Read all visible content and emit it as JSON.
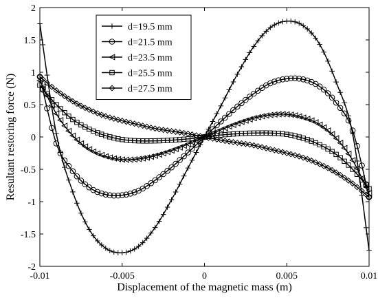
{
  "chart_data": {
    "type": "line",
    "title": "",
    "xlabel": "Displacement of the magnetic mass (m)",
    "ylabel": "Resultant restoring force (N)",
    "xlim": [
      -0.01,
      0.01
    ],
    "ylim": [
      -2,
      2
    ],
    "xticks": [
      -0.01,
      -0.005,
      0,
      0.005,
      0.01
    ],
    "xtick_labels": [
      "-0.01",
      "-0.005",
      "0",
      "0.005",
      "0.01"
    ],
    "yticks": [
      -2,
      -1.5,
      -1,
      -0.5,
      0,
      0.5,
      1,
      1.5,
      2
    ],
    "ytick_labels": [
      "-2",
      "-1.5",
      "-1",
      "-0.5",
      "0",
      "0.5",
      "1",
      "1.5",
      "2"
    ],
    "grid": false,
    "legend_position": "top-left",
    "series": [
      {
        "name": "d=19.5 mm",
        "marker": "plus",
        "x": [
          -0.01,
          -0.009,
          -0.008,
          -0.007,
          -0.006,
          -0.005,
          -0.004,
          -0.003,
          -0.002,
          -0.001,
          0,
          0.001,
          0.002,
          0.003,
          0.004,
          0.005,
          0.006,
          0.007,
          0.008,
          0.009,
          0.01
        ],
        "y": [
          1.75,
          0.05,
          -0.85,
          -1.43,
          -1.72,
          -1.79,
          -1.69,
          -1.4,
          -0.97,
          -0.48,
          0,
          0.48,
          0.97,
          1.4,
          1.69,
          1.79,
          1.72,
          1.43,
          0.85,
          0.05,
          -1.75
        ]
      },
      {
        "name": "d=21.5 mm",
        "marker": "circle",
        "x": [
          -0.01,
          -0.009,
          -0.008,
          -0.007,
          -0.006,
          -0.005,
          -0.004,
          -0.003,
          -0.002,
          -0.001,
          0,
          0.001,
          0.002,
          0.003,
          0.004,
          0.005,
          0.006,
          0.007,
          0.008,
          0.009,
          0.01
        ],
        "y": [
          0.93,
          -0.1,
          -0.53,
          -0.78,
          -0.89,
          -0.9,
          -0.83,
          -0.67,
          -0.47,
          -0.24,
          0,
          0.24,
          0.47,
          0.67,
          0.83,
          0.9,
          0.89,
          0.78,
          0.53,
          0.1,
          -0.93
        ]
      },
      {
        "name": "d=23.5 mm",
        "marker": "triangle-left",
        "x": [
          -0.01,
          -0.009,
          -0.008,
          -0.007,
          -0.006,
          -0.005,
          -0.004,
          -0.003,
          -0.002,
          -0.001,
          0,
          0.001,
          0.002,
          0.003,
          0.004,
          0.005,
          0.006,
          0.007,
          0.008,
          0.009,
          0.01
        ],
        "y": [
          0.87,
          0.36,
          0.02,
          -0.19,
          -0.3,
          -0.35,
          -0.34,
          -0.29,
          -0.21,
          -0.11,
          0,
          0.11,
          0.21,
          0.29,
          0.34,
          0.35,
          0.3,
          0.19,
          -0.02,
          -0.36,
          -0.87
        ]
      },
      {
        "name": "d=25.5 mm",
        "marker": "square",
        "x": [
          -0.01,
          -0.009,
          -0.008,
          -0.007,
          -0.006,
          -0.005,
          -0.004,
          -0.003,
          -0.002,
          -0.001,
          0,
          0.001,
          0.002,
          0.003,
          0.004,
          0.005,
          0.006,
          0.007,
          0.008,
          0.009,
          0.01
        ],
        "y": [
          0.8,
          0.5,
          0.27,
          0.12,
          0.02,
          -0.04,
          -0.06,
          -0.06,
          -0.05,
          -0.03,
          0,
          0.03,
          0.05,
          0.06,
          0.06,
          0.04,
          -0.02,
          -0.12,
          -0.27,
          -0.5,
          -0.8
        ]
      },
      {
        "name": "d=27.5 mm",
        "marker": "diamond",
        "x": [
          -0.01,
          -0.009,
          -0.008,
          -0.007,
          -0.006,
          -0.005,
          -0.004,
          -0.003,
          -0.002,
          -0.001,
          0,
          0.001,
          0.002,
          0.003,
          0.004,
          0.005,
          0.006,
          0.007,
          0.008,
          0.009,
          0.01
        ],
        "y": [
          0.93,
          0.72,
          0.55,
          0.42,
          0.32,
          0.25,
          0.19,
          0.13,
          0.09,
          0.05,
          0,
          -0.05,
          -0.09,
          -0.13,
          -0.19,
          -0.25,
          -0.32,
          -0.42,
          -0.55,
          -0.72,
          -0.93
        ]
      }
    ]
  }
}
